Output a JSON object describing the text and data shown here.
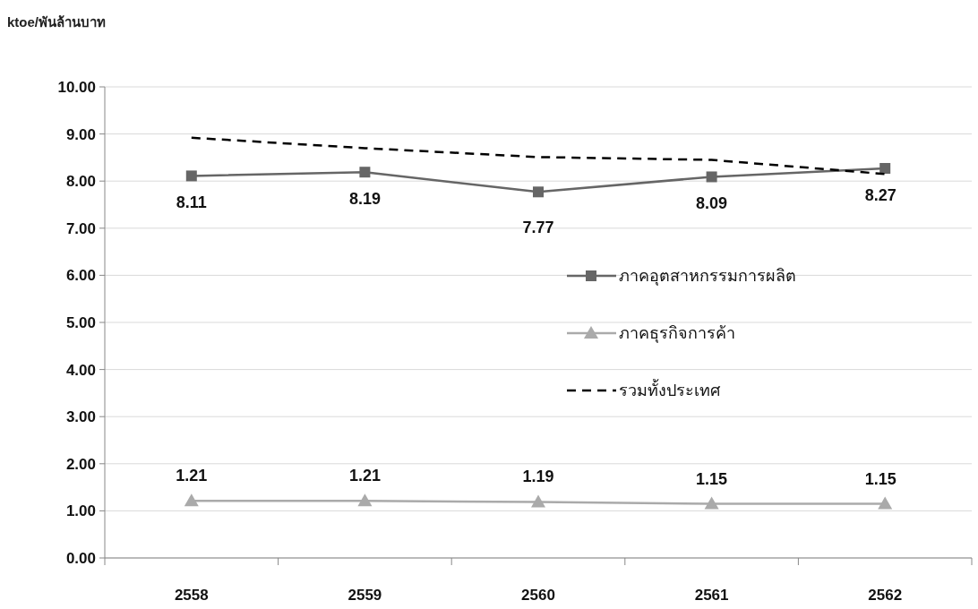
{
  "chart_data": {
    "type": "line",
    "ylabel": "ktoe/พันล้านบาท",
    "categories": [
      "2558",
      "2559",
      "2560",
      "2561",
      "2562"
    ],
    "ylim": [
      0,
      10
    ],
    "yticks": [
      {
        "value": 0,
        "label": "0.00"
      },
      {
        "value": 1,
        "label": "1.00"
      },
      {
        "value": 2,
        "label": "2.00"
      },
      {
        "value": 3,
        "label": "3.00"
      },
      {
        "value": 4,
        "label": "4.00"
      },
      {
        "value": 5,
        "label": "5.00"
      },
      {
        "value": 6,
        "label": "6.00"
      },
      {
        "value": 7,
        "label": "7.00"
      },
      {
        "value": 8,
        "label": "8.00"
      },
      {
        "value": 9,
        "label": "9.00"
      },
      {
        "value": 10,
        "label": "10.00"
      }
    ],
    "grid": "y",
    "legend": "right",
    "series": [
      {
        "name": "ภาคอุตสาหกรรมการผลิต",
        "color": "#666666",
        "marker": "square",
        "line_style": "solid",
        "values": [
          8.11,
          8.19,
          7.77,
          8.09,
          8.27
        ],
        "value_labels": [
          "8.11",
          "8.19",
          "7.77",
          "8.09",
          "8.27"
        ]
      },
      {
        "name": "ภาคธุรกิจการค้า",
        "color": "#aaaaaa",
        "marker": "triangle",
        "line_style": "solid",
        "values": [
          1.21,
          1.21,
          1.19,
          1.15,
          1.15
        ],
        "value_labels": [
          "1.21",
          "1.21",
          "1.19",
          "1.15",
          "1.15"
        ]
      },
      {
        "name": "รวมทั้งประเทศ",
        "color": "#000000",
        "marker": "none",
        "line_style": "dashed",
        "values": [
          8.92,
          8.7,
          8.51,
          8.45,
          8.15
        ]
      }
    ]
  }
}
